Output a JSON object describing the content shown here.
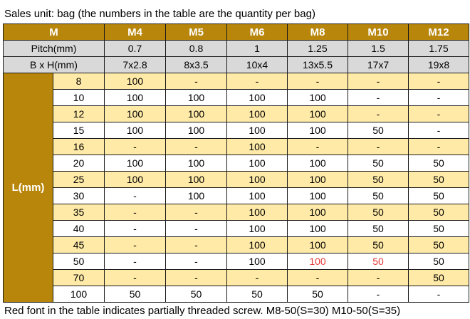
{
  "caption": "Sales unit: bag (the numbers in the table are the quantity per bag)",
  "header": {
    "m_label": "M",
    "sizes": [
      "M4",
      "M5",
      "M6",
      "M8",
      "M10",
      "M12"
    ]
  },
  "pitch": {
    "label": "Pitch(mm)",
    "values": [
      "0.7",
      "0.8",
      "1",
      "1.25",
      "1.5",
      "1.75"
    ]
  },
  "bxh": {
    "label": "B x H(mm)",
    "values": [
      "7x2.8",
      "8x3.5",
      "10x4",
      "13x5.5",
      "17x7",
      "19x8"
    ]
  },
  "l_label": "L(mm)",
  "rows": [
    {
      "length": "8",
      "values": [
        "100",
        "-",
        "-",
        "-",
        "-",
        "-"
      ]
    },
    {
      "length": "10",
      "values": [
        "100",
        "100",
        "100",
        "100",
        "-",
        "-"
      ]
    },
    {
      "length": "12",
      "values": [
        "100",
        "100",
        "100",
        "100",
        "-",
        "-"
      ]
    },
    {
      "length": "15",
      "values": [
        "100",
        "100",
        "100",
        "100",
        "50",
        "-"
      ]
    },
    {
      "length": "16",
      "values": [
        "-",
        "-",
        "100",
        "-",
        "-",
        "-"
      ]
    },
    {
      "length": "20",
      "values": [
        "100",
        "100",
        "100",
        "100",
        "50",
        "50"
      ]
    },
    {
      "length": "25",
      "values": [
        "100",
        "100",
        "100",
        "100",
        "50",
        "50"
      ]
    },
    {
      "length": "30",
      "values": [
        "-",
        "100",
        "100",
        "100",
        "50",
        "50"
      ]
    },
    {
      "length": "35",
      "values": [
        "-",
        "-",
        "100",
        "100",
        "50",
        "50"
      ]
    },
    {
      "length": "40",
      "values": [
        "-",
        "-",
        "100",
        "100",
        "50",
        "50"
      ]
    },
    {
      "length": "45",
      "values": [
        "-",
        "-",
        "100",
        "100",
        "50",
        "50"
      ]
    },
    {
      "length": "50",
      "values": [
        "-",
        "-",
        "100",
        "100",
        "50",
        "50"
      ]
    },
    {
      "length": "70",
      "values": [
        "-",
        "-",
        "-",
        "-",
        "-",
        "50"
      ]
    },
    {
      "length": "100",
      "values": [
        "50",
        "50",
        "50",
        "50",
        "-",
        "-"
      ]
    }
  ],
  "red_cells": [
    {
      "row": 11,
      "col": 3
    },
    {
      "row": 11,
      "col": 4
    }
  ],
  "colors": {
    "header_gold": "#b8860b",
    "row_highlight": "#ffeaa7",
    "grey_row": "#d9d9d9",
    "red_text": "#e53935"
  },
  "footnote": "Red font in the table indicates partially threaded screw. M8-50(S=30)  M10-50(S=35)"
}
